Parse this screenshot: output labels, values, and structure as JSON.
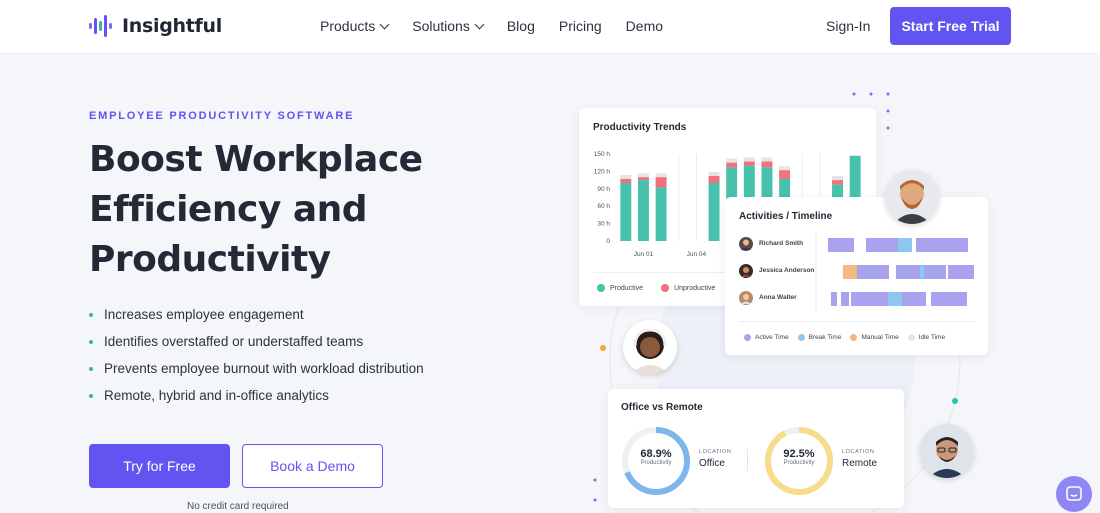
{
  "nav": {
    "logo_text": "Insightful",
    "items": [
      {
        "label": "Products",
        "has_dropdown": true
      },
      {
        "label": "Solutions",
        "has_dropdown": true
      },
      {
        "label": "Blog",
        "has_dropdown": false
      },
      {
        "label": "Pricing",
        "has_dropdown": false
      },
      {
        "label": "Demo",
        "has_dropdown": false
      }
    ],
    "signin": "Sign-In",
    "cta": "Start Free Trial"
  },
  "hero": {
    "eyebrow": "EMPLOYEE PRODUCTIVITY SOFTWARE",
    "headline_lines": [
      "Boost Workplace",
      "Efficiency and",
      "Productivity"
    ],
    "bullets": [
      "Increases employee engagement",
      "Identifies overstaffed or understaffed teams",
      "Prevents employee burnout with workload distribution",
      "Remote, hybrid and in-office analytics"
    ],
    "primary_button": "Try for Free",
    "secondary_button": "Book a Demo",
    "note": "No credit card required"
  },
  "productivity_card": {
    "title": "Productivity Trends",
    "y_ticks": [
      "150 h",
      "120 h",
      "90 h",
      "60 h",
      "30 h",
      "0"
    ],
    "x_labels": [
      "Jun 01",
      "Jun 04"
    ],
    "legend": [
      {
        "label": "Productive",
        "color": "#48c1ad"
      },
      {
        "label": "Unproductive",
        "color": "#f0707c"
      }
    ]
  },
  "chart_data": {
    "type": "bar",
    "title": "Productivity Trends",
    "ylim": [
      0,
      150
    ],
    "x_tick_labels": [
      "Jun 01",
      "Jun 04"
    ],
    "series": [
      {
        "name": "Productive",
        "values": [
          100,
          105,
          92,
          null,
          null,
          100,
          127,
          130,
          127,
          107,
          null,
          null,
          97,
          147
        ]
      },
      {
        "name": "Unproductive",
        "values": [
          7,
          5,
          18,
          null,
          null,
          12,
          8,
          7,
          10,
          15,
          null,
          null,
          8,
          0
        ]
      }
    ],
    "colors": {
      "productive": "#48c1ad",
      "unproductive": "#f0707c",
      "idle": "#e2e4e8"
    }
  },
  "activities_card": {
    "title": "Activities / Timeline",
    "people": [
      {
        "name": "Richard Smith"
      },
      {
        "name": "Jessica Anderson"
      },
      {
        "name": "Anna Walter"
      }
    ],
    "legend": [
      {
        "label": "Active Time",
        "color": "#a9a3ef"
      },
      {
        "label": "Break Time",
        "color": "#8ec8f0"
      },
      {
        "label": "Manual Time",
        "color": "#f4b980"
      },
      {
        "label": "Idle Time",
        "color": "#e6e7ea"
      }
    ]
  },
  "office_card": {
    "title": "Office vs Remote",
    "items": [
      {
        "percent": "68.9%",
        "sub": "Productivity",
        "loc_label": "LOCATION",
        "loc_value": "Office",
        "color": "#7db5ec",
        "fraction": 0.689
      },
      {
        "percent": "92.5%",
        "sub": "Productivity",
        "loc_label": "LOCATION",
        "loc_value": "Remote",
        "color": "#f7dc8a",
        "fraction": 0.925
      }
    ]
  }
}
